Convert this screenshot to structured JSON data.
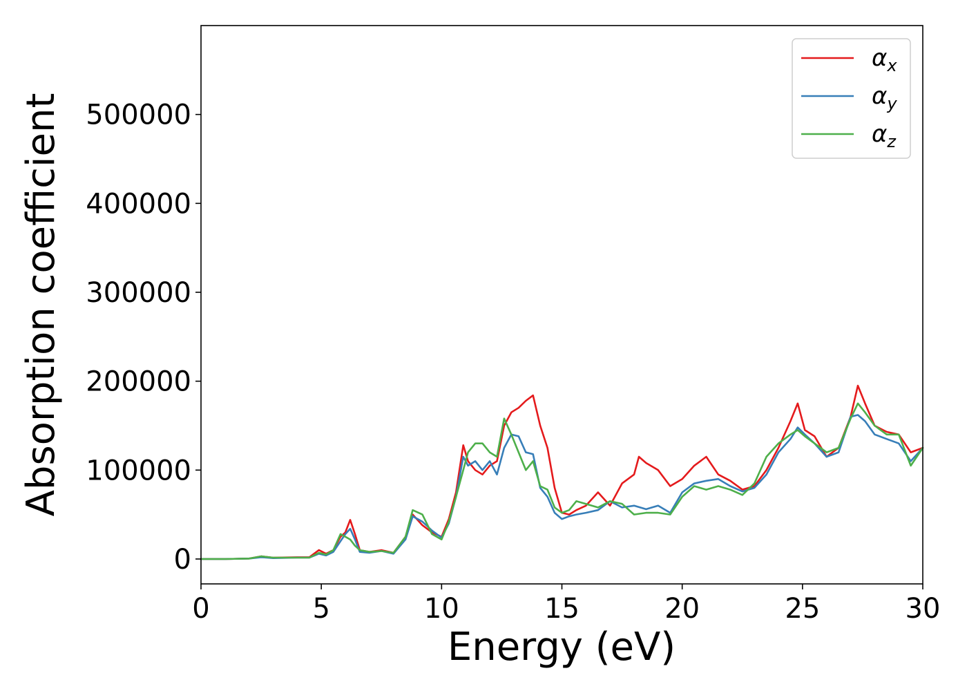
{
  "chart_data": {
    "type": "line",
    "title": "",
    "xlabel": "Energy (eV)",
    "ylabel": "Absorption coefficient",
    "xlim": [
      0,
      30
    ],
    "ylim": [
      -28000,
      600000
    ],
    "xticks": [
      0,
      5,
      10,
      15,
      20,
      25,
      30
    ],
    "xtick_labels": [
      "0",
      "5",
      "10",
      "15",
      "20",
      "25",
      "30"
    ],
    "yticks": [
      0,
      100000,
      200000,
      300000,
      400000,
      500000
    ],
    "ytick_labels": [
      "0",
      "100000",
      "200000",
      "300000",
      "400000",
      "500000"
    ],
    "grid": false,
    "legend_position": "top-right",
    "series": [
      {
        "name": "x",
        "legend_symbol": "α",
        "color": "#e41a1c",
        "x": [
          0,
          1,
          2,
          2.5,
          3,
          4,
          4.5,
          4.9,
          5.2,
          5.5,
          5.8,
          6,
          6.2,
          6.4,
          6.6,
          7,
          7.5,
          8,
          8.5,
          8.8,
          9.2,
          9.6,
          10,
          10.3,
          10.6,
          10.9,
          11.1,
          11.4,
          11.7,
          12,
          12.3,
          12.6,
          12.9,
          13.2,
          13.5,
          13.8,
          14.1,
          14.4,
          14.7,
          15,
          15.3,
          15.6,
          16,
          16.5,
          17,
          17.5,
          18,
          18.2,
          18.5,
          19,
          19.5,
          20,
          20.5,
          21,
          21.5,
          22,
          22.5,
          23,
          23.5,
          24,
          24.5,
          24.8,
          25.1,
          25.5,
          26,
          26.5,
          27,
          27.3,
          27.6,
          28,
          28.5,
          29,
          29.5,
          30
        ],
        "y": [
          0,
          0,
          500,
          3000,
          1500,
          2000,
          2000,
          10000,
          6000,
          10000,
          25000,
          30000,
          44000,
          28000,
          10000,
          8000,
          10000,
          7000,
          25000,
          50000,
          38000,
          30000,
          25000,
          45000,
          75000,
          128000,
          110000,
          100000,
          95000,
          105000,
          110000,
          150000,
          165000,
          170000,
          178000,
          184000,
          150000,
          125000,
          80000,
          52000,
          50000,
          55000,
          60000,
          75000,
          60000,
          85000,
          95000,
          115000,
          108000,
          100000,
          82000,
          90000,
          105000,
          115000,
          95000,
          88000,
          78000,
          82000,
          100000,
          125000,
          155000,
          175000,
          145000,
          138000,
          115000,
          125000,
          160000,
          195000,
          175000,
          150000,
          143000,
          140000,
          120000,
          125000
        ]
      },
      {
        "name": "y",
        "legend_symbol": "α",
        "color": "#377eb8",
        "x": [
          0,
          1,
          2,
          2.5,
          3,
          4,
          4.5,
          4.9,
          5.2,
          5.5,
          5.8,
          6,
          6.2,
          6.4,
          6.6,
          7,
          7.5,
          8,
          8.5,
          8.8,
          9.2,
          9.6,
          10,
          10.3,
          10.6,
          10.9,
          11.1,
          11.4,
          11.7,
          12,
          12.3,
          12.6,
          12.9,
          13.2,
          13.5,
          13.8,
          14.1,
          14.4,
          14.7,
          15,
          15.3,
          15.6,
          16,
          16.5,
          17,
          17.5,
          18,
          18.5,
          19,
          19.5,
          20,
          20.5,
          21,
          21.5,
          22,
          22.5,
          23,
          23.5,
          24,
          24.5,
          24.8,
          25.1,
          25.5,
          26,
          26.5,
          27,
          27.3,
          27.6,
          28,
          28.5,
          29,
          29.5,
          30
        ],
        "y": [
          0,
          0,
          500,
          2000,
          1000,
          1500,
          1500,
          6000,
          4000,
          8000,
          20000,
          28000,
          34000,
          22000,
          8000,
          7000,
          9000,
          6000,
          22000,
          48000,
          42000,
          32000,
          24000,
          40000,
          70000,
          115000,
          105000,
          110000,
          100000,
          110000,
          95000,
          125000,
          140000,
          138000,
          120000,
          118000,
          80000,
          70000,
          52000,
          45000,
          48000,
          50000,
          52000,
          55000,
          65000,
          58000,
          60000,
          56000,
          60000,
          52000,
          75000,
          85000,
          88000,
          90000,
          82000,
          76000,
          80000,
          95000,
          120000,
          135000,
          148000,
          140000,
          130000,
          115000,
          120000,
          160000,
          162000,
          155000,
          140000,
          135000,
          130000,
          110000,
          125000
        ]
      },
      {
        "name": "z",
        "legend_symbol": "α",
        "color": "#4daf4a",
        "x": [
          0,
          1,
          2,
          2.5,
          3,
          4,
          4.5,
          4.9,
          5.2,
          5.5,
          5.8,
          6,
          6.2,
          6.4,
          6.6,
          7,
          7.5,
          8,
          8.5,
          8.8,
          9.2,
          9.6,
          10,
          10.3,
          10.6,
          10.9,
          11.1,
          11.4,
          11.7,
          12,
          12.3,
          12.6,
          12.9,
          13.2,
          13.5,
          13.8,
          14.1,
          14.4,
          14.7,
          15,
          15.3,
          15.6,
          16,
          16.5,
          17,
          17.5,
          18,
          18.5,
          19,
          19.5,
          20,
          20.5,
          21,
          21.5,
          22,
          22.5,
          23,
          23.5,
          24,
          24.5,
          24.8,
          25.1,
          25.5,
          26,
          26.5,
          27,
          27.3,
          27.6,
          28,
          28.5,
          29,
          29.5,
          30
        ],
        "y": [
          0,
          0,
          500,
          3000,
          1500,
          1500,
          1500,
          7000,
          5000,
          10000,
          28000,
          25000,
          22000,
          15000,
          10000,
          8000,
          9000,
          7000,
          25000,
          55000,
          50000,
          28000,
          22000,
          42000,
          70000,
          100000,
          120000,
          130000,
          130000,
          120000,
          115000,
          158000,
          140000,
          120000,
          100000,
          110000,
          82000,
          78000,
          58000,
          52000,
          55000,
          65000,
          62000,
          58000,
          65000,
          62000,
          50000,
          52000,
          52000,
          50000,
          70000,
          82000,
          78000,
          82000,
          78000,
          72000,
          85000,
          115000,
          130000,
          140000,
          145000,
          138000,
          130000,
          120000,
          125000,
          158000,
          175000,
          165000,
          150000,
          140000,
          140000,
          105000,
          125000
        ]
      }
    ]
  }
}
